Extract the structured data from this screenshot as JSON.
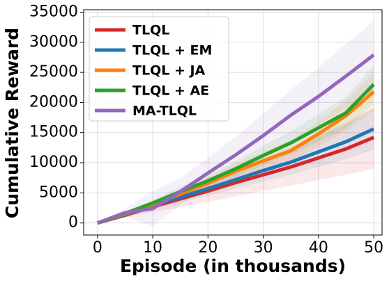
{
  "chart_data": {
    "type": "line",
    "xlabel": "Episode (in thousands)",
    "ylabel": "Cumulative Reward",
    "x": [
      0,
      5,
      10,
      15,
      20,
      25,
      30,
      35,
      40,
      45,
      50
    ],
    "xlim": [
      -2.5,
      51.5
    ],
    "xticks": [
      0,
      10,
      20,
      30,
      40,
      50
    ],
    "ylim": [
      -2000,
      35400
    ],
    "yticks": [
      0,
      5000,
      10000,
      15000,
      20000,
      25000,
      30000,
      35000
    ],
    "grid": true,
    "legend": "upper-left",
    "series": [
      {
        "name": "TLQL",
        "color": "#d62728",
        "values": [
          0,
          1300,
          2700,
          4000,
          5300,
          6700,
          8000,
          9300,
          10800,
          12300,
          14200
        ],
        "lower": [
          0,
          900,
          1800,
          2600,
          3500,
          4400,
          5300,
          6200,
          7100,
          8000,
          9000
        ],
        "upper": [
          0,
          1700,
          3600,
          5500,
          7200,
          9100,
          10800,
          12600,
          14600,
          16700,
          19200
        ]
      },
      {
        "name": "TLQL + EM",
        "color": "#1f77b4",
        "values": [
          0,
          1400,
          2900,
          4300,
          5700,
          7200,
          8700,
          10100,
          11800,
          13500,
          15600
        ],
        "lower": [
          0,
          1100,
          2300,
          3400,
          4500,
          5700,
          6900,
          8000,
          9300,
          10600,
          12200
        ],
        "upper": [
          0,
          1700,
          3500,
          5200,
          6900,
          8700,
          10500,
          12200,
          14300,
          16400,
          19000
        ]
      },
      {
        "name": "TLQL + JA",
        "color": "#ff7f0e",
        "values": [
          0,
          1500,
          3100,
          4800,
          6600,
          8600,
          10300,
          12000,
          14800,
          17800,
          21800
        ],
        "lower": [
          0,
          1200,
          2600,
          4000,
          5600,
          7300,
          8800,
          10300,
          12700,
          15300,
          18700
        ],
        "upper": [
          0,
          1800,
          3600,
          5600,
          7600,
          9900,
          11800,
          13700,
          16900,
          20300,
          24900
        ]
      },
      {
        "name": "TLQL + AE",
        "color": "#2ca02c",
        "values": [
          0,
          1600,
          3300,
          5200,
          7000,
          9000,
          11200,
          13300,
          15800,
          18300,
          23000
        ],
        "lower": [
          0,
          1300,
          2800,
          4400,
          6000,
          7700,
          9600,
          11400,
          13500,
          15700,
          19800
        ],
        "upper": [
          0,
          1900,
          3800,
          6000,
          8000,
          10300,
          12800,
          15200,
          18100,
          20900,
          26200
        ]
      },
      {
        "name": "MA-TLQL",
        "color": "#9467bd",
        "values": [
          0,
          1700,
          2400,
          5200,
          8300,
          11300,
          14500,
          17900,
          21000,
          24400,
          27900
        ],
        "lower": [
          0,
          1000,
          -500,
          3000,
          5800,
          8300,
          10900,
          13700,
          16200,
          19000,
          22000
        ],
        "upper": [
          0,
          2400,
          5300,
          7400,
          10800,
          14300,
          18100,
          22100,
          25800,
          29800,
          33500
        ]
      }
    ]
  }
}
